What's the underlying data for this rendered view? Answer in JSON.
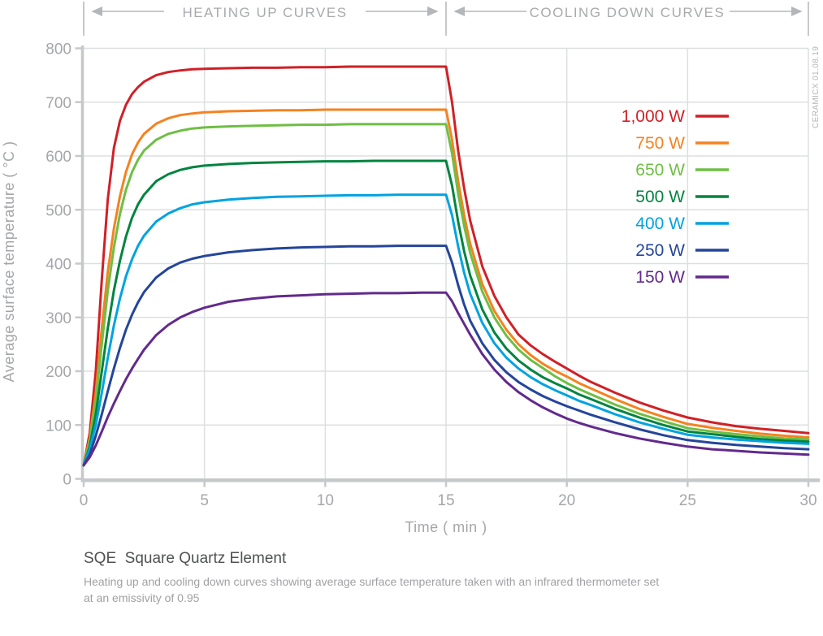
{
  "header": {
    "heating_label": "HEATING UP CURVES",
    "cooling_label": "COOLING DOWN CURVES"
  },
  "watermark": "CERAMICX 01.08.19",
  "caption": {
    "title": "SQE  Square Quartz Element",
    "description_line1": "Heating up and cooling down curves showing average surface temperature taken with an infrared thermometer set",
    "description_line2": "at an emissivity of 0.95"
  },
  "colors": {
    "axis": "#c6c8ca",
    "grid": "#dedfe0",
    "tick_label": "#a4a6a9",
    "header_text": "#a8aaad",
    "caption_title": "#4f5153",
    "caption_desc": "#9fa1a4",
    "watermark": "#b3b5b8"
  },
  "chart_data": {
    "type": "line",
    "title": "",
    "xlabel": "Time ( min )",
    "ylabel": "Average surface temperature ( °C )",
    "xlim": [
      0,
      30
    ],
    "ylim": [
      0,
      800
    ],
    "x_ticks": [
      0,
      5,
      10,
      15,
      20,
      25,
      30
    ],
    "y_ticks": [
      0,
      100,
      200,
      300,
      400,
      500,
      600,
      700,
      800
    ],
    "grid": true,
    "legend_position": "upper-right-inside",
    "phases": {
      "heating_min": [
        0,
        15
      ],
      "cooling_min": [
        15,
        30
      ]
    },
    "x": [
      0,
      0.25,
      0.5,
      0.75,
      1,
      1.25,
      1.5,
      1.75,
      2,
      2.25,
      2.5,
      3,
      3.5,
      4,
      4.5,
      5,
      6,
      7,
      8,
      9,
      10,
      11,
      12,
      13,
      14,
      15,
      15.25,
      15.5,
      15.75,
      16,
      16.5,
      17,
      17.5,
      18,
      18.5,
      19,
      19.5,
      20,
      20.5,
      21,
      22,
      23,
      24,
      25,
      26,
      27,
      28,
      29,
      30
    ],
    "series": [
      {
        "label": "1,000 W",
        "watts": 1000,
        "color": "#d02027",
        "values": [
          25,
          85,
          200,
          370,
          520,
          615,
          665,
          695,
          715,
          728,
          738,
          750,
          756,
          759,
          761,
          762,
          763,
          764,
          764,
          765,
          765,
          766,
          766,
          766,
          766,
          766,
          700,
          610,
          540,
          480,
          395,
          340,
          300,
          268,
          248,
          232,
          218,
          205,
          192,
          180,
          160,
          142,
          127,
          114,
          105,
          98,
          93,
          89,
          85
        ]
      },
      {
        "label": "750 W",
        "watts": 750,
        "color": "#f58220",
        "values": [
          25,
          75,
          160,
          280,
          385,
          465,
          525,
          570,
          603,
          625,
          641,
          660,
          670,
          676,
          679,
          681,
          683,
          684,
          685,
          685,
          686,
          686,
          686,
          686,
          686,
          686,
          630,
          553,
          490,
          437,
          362,
          312,
          277,
          250,
          230,
          214,
          201,
          190,
          178,
          168,
          148,
          130,
          115,
          102,
          95,
          89,
          84,
          80,
          77
        ]
      },
      {
        "label": "650 W",
        "watts": 650,
        "color": "#6fbe44",
        "values": [
          25,
          70,
          145,
          250,
          350,
          430,
          492,
          537,
          570,
          593,
          610,
          630,
          641,
          647,
          651,
          653,
          655,
          656,
          657,
          658,
          658,
          659,
          659,
          659,
          659,
          659,
          605,
          530,
          470,
          420,
          348,
          300,
          266,
          240,
          221,
          206,
          191,
          178,
          167,
          157,
          138,
          121,
          107,
          94,
          88,
          83,
          79,
          75,
          73
        ]
      },
      {
        "label": "500 W",
        "watts": 500,
        "color": "#00843f",
        "values": [
          25,
          60,
          120,
          200,
          280,
          350,
          405,
          450,
          485,
          510,
          528,
          553,
          566,
          574,
          579,
          582,
          585,
          587,
          588,
          589,
          590,
          590,
          591,
          591,
          591,
          591,
          545,
          478,
          423,
          378,
          315,
          272,
          242,
          220,
          203,
          189,
          178,
          168,
          157,
          148,
          130,
          114,
          100,
          88,
          83,
          78,
          74,
          71,
          69
        ]
      },
      {
        "label": "400 W",
        "watts": 400,
        "color": "#00a3e0",
        "values": [
          25,
          55,
          100,
          160,
          225,
          285,
          335,
          376,
          408,
          433,
          452,
          478,
          493,
          503,
          510,
          514,
          519,
          522,
          524,
          525,
          526,
          527,
          527,
          528,
          528,
          528,
          490,
          432,
          383,
          344,
          290,
          252,
          225,
          205,
          189,
          176,
          165,
          155,
          145,
          137,
          120,
          105,
          93,
          82,
          77,
          73,
          70,
          67,
          65
        ]
      },
      {
        "label": "250 W",
        "watts": 250,
        "color": "#24459a",
        "values": [
          25,
          45,
          80,
          120,
          163,
          205,
          243,
          277,
          305,
          328,
          347,
          374,
          391,
          402,
          409,
          414,
          421,
          425,
          428,
          430,
          431,
          432,
          432,
          433,
          433,
          433,
          402,
          360,
          324,
          294,
          252,
          221,
          198,
          180,
          166,
          154,
          144,
          135,
          127,
          119,
          105,
          92,
          81,
          72,
          67,
          63,
          60,
          57,
          55
        ]
      },
      {
        "label": "150 W",
        "watts": 150,
        "color": "#622a8c",
        "values": [
          25,
          40,
          62,
          88,
          115,
          140,
          163,
          185,
          205,
          223,
          240,
          267,
          286,
          300,
          310,
          318,
          329,
          335,
          339,
          341,
          343,
          344,
          345,
          345,
          346,
          346,
          330,
          308,
          288,
          268,
          232,
          203,
          180,
          161,
          146,
          133,
          122,
          112,
          104,
          97,
          85,
          75,
          67,
          60,
          55,
          52,
          49,
          47,
          45
        ]
      }
    ]
  }
}
